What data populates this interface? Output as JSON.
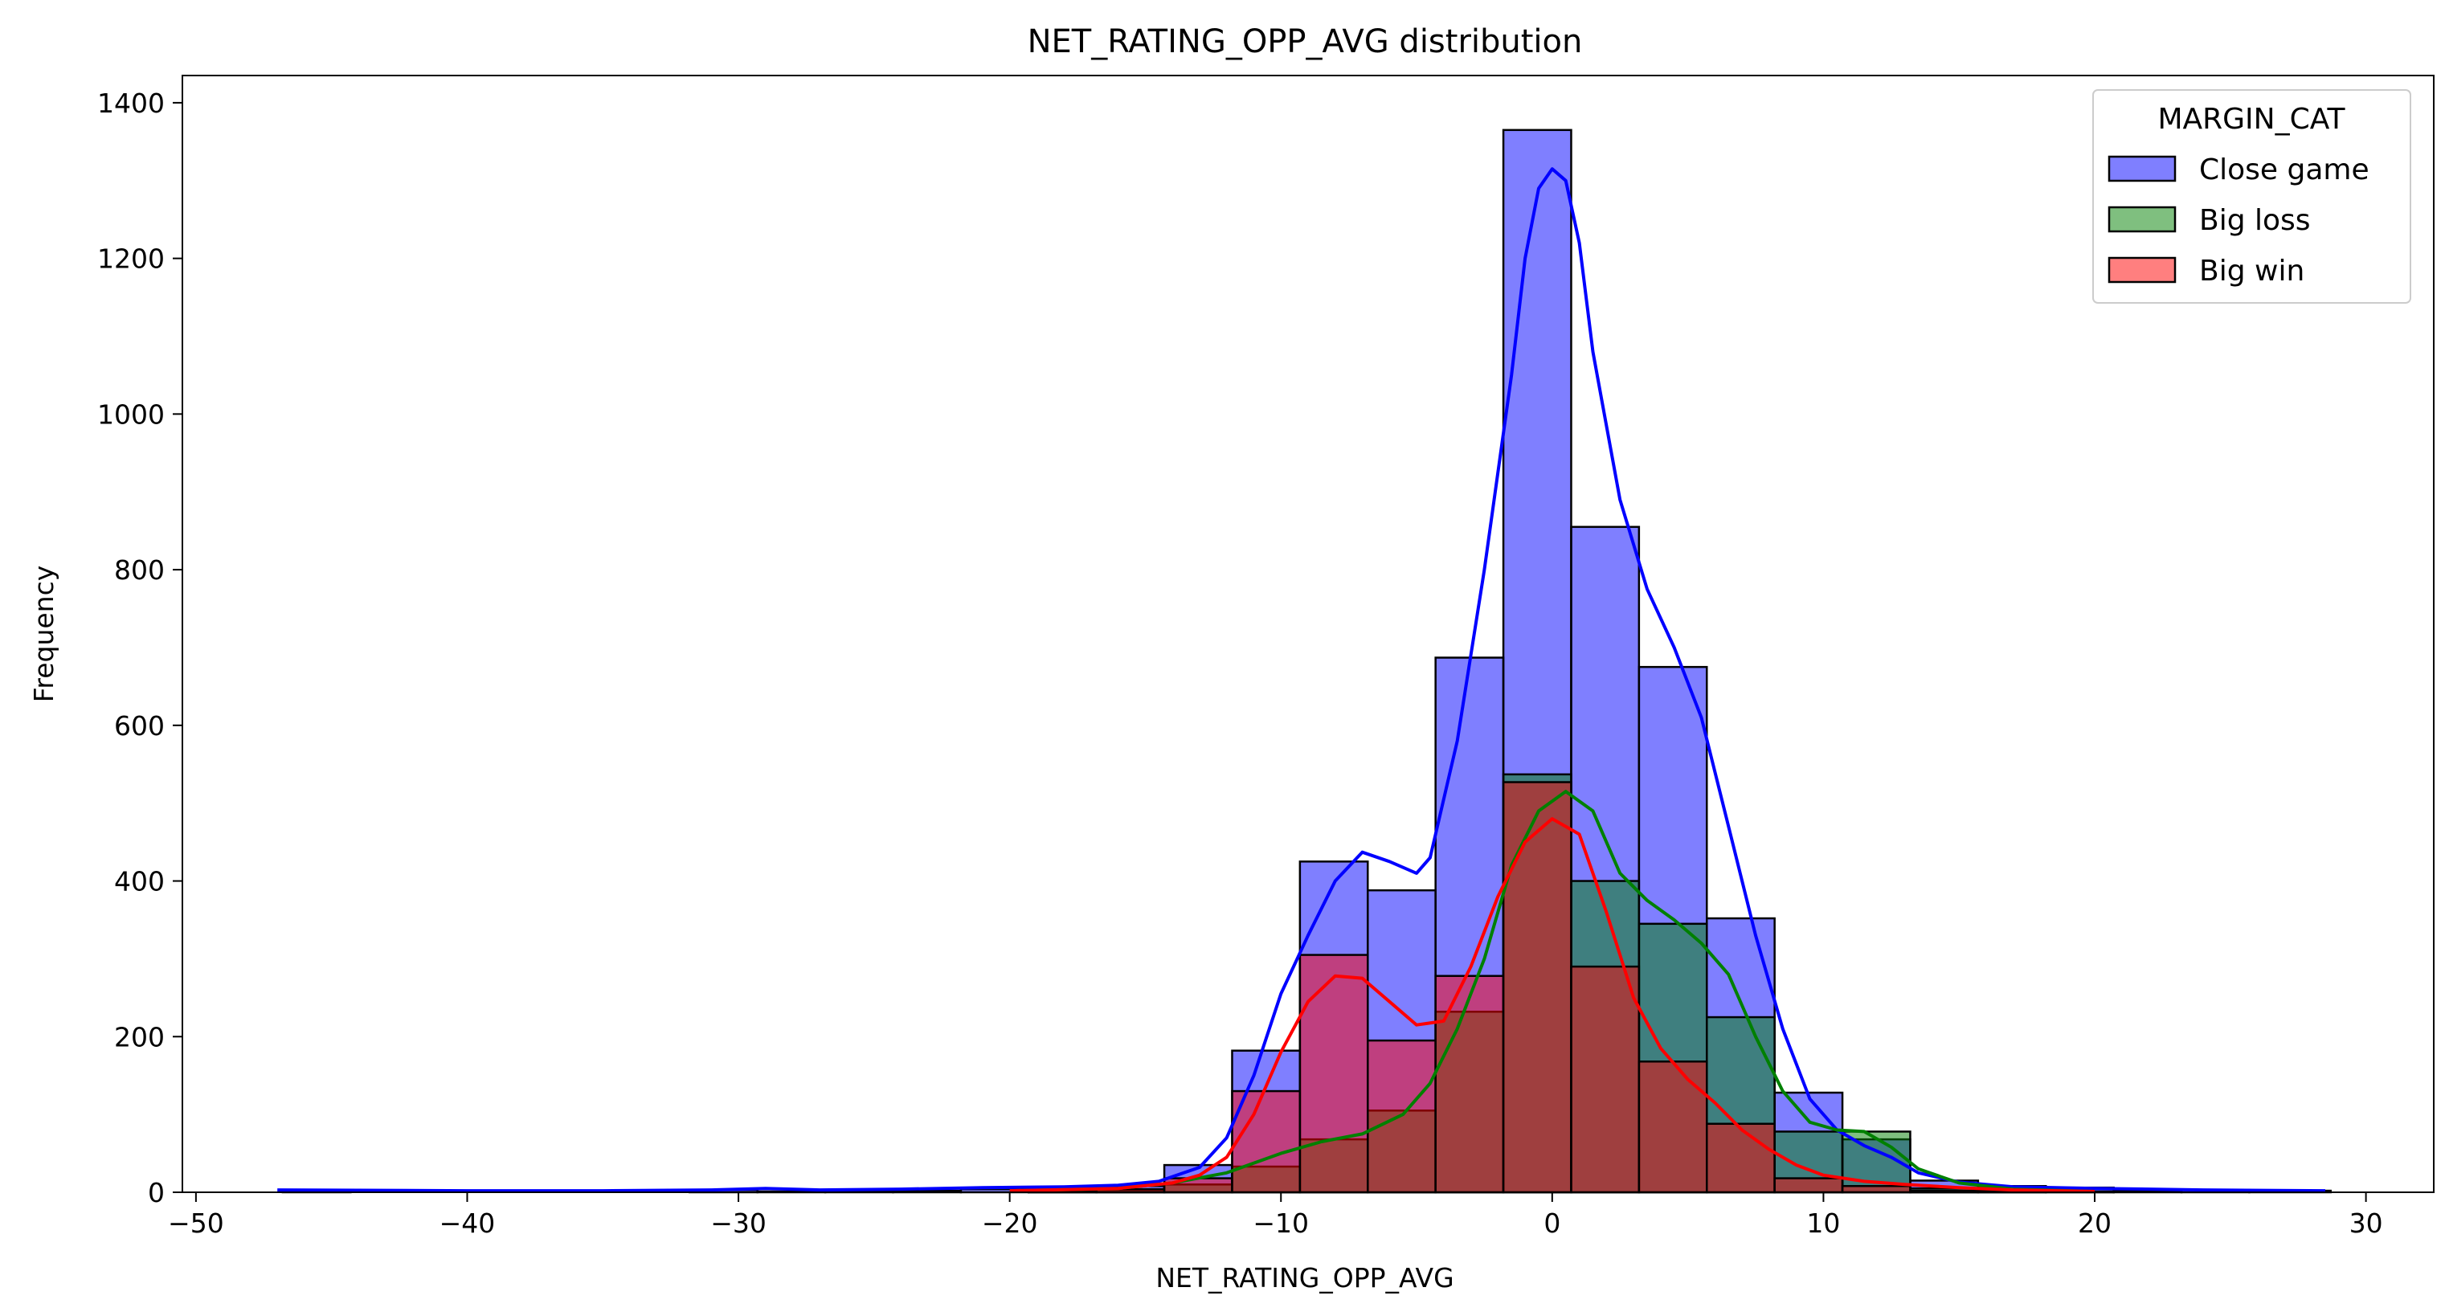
{
  "chart_data": {
    "type": "bar",
    "title": "NET_RATING_OPP_AVG distribution",
    "xlabel": "NET_RATING_OPP_AVG",
    "ylabel": "Frequency",
    "xlim": [
      -50.5,
      32.5
    ],
    "ylim": [
      0,
      1435
    ],
    "x_ticks": [
      -50,
      -40,
      -30,
      -20,
      -10,
      0,
      10,
      20,
      30
    ],
    "x_tick_labels": [
      "−50",
      "−40",
      "−30",
      "−20",
      "−10",
      "0",
      "10",
      "20",
      "30"
    ],
    "y_ticks": [
      0,
      200,
      400,
      600,
      800,
      1000,
      1200,
      1400
    ],
    "y_tick_labels": [
      "0",
      "200",
      "400",
      "600",
      "800",
      "1000",
      "1200",
      "1400"
    ],
    "grid": false,
    "legend": {
      "title": "MARGIN_CAT",
      "placement": "top-right"
    },
    "bin_edges": [
      -46.8,
      -44.3,
      -41.8,
      -39.3,
      -36.8,
      -34.3,
      -31.8,
      -29.3,
      -26.8,
      -24.3,
      -21.8,
      -19.3,
      -16.8,
      -14.3,
      -11.8,
      -9.3,
      -6.8,
      -4.3,
      -1.8,
      0.7,
      3.2,
      5.7,
      8.2,
      10.7,
      13.2,
      15.7,
      18.2,
      20.7,
      23.2,
      25.7,
      28.7
    ],
    "series": [
      {
        "name": "Close game",
        "color": "#0000ff",
        "values": [
          1,
          0,
          0,
          0,
          0,
          0,
          3,
          1,
          2,
          2,
          4,
          5,
          8,
          35,
          182,
          425,
          388,
          687,
          1365,
          855,
          675,
          352,
          128,
          68,
          15,
          8,
          6,
          2,
          3,
          2
        ],
        "kde": [
          [
            -47,
            3
          ],
          [
            -40,
            2
          ],
          [
            -35,
            2
          ],
          [
            -31,
            3
          ],
          [
            -29,
            5
          ],
          [
            -27,
            3
          ],
          [
            -24,
            4
          ],
          [
            -21,
            6
          ],
          [
            -18,
            7
          ],
          [
            -16,
            9
          ],
          [
            -14.5,
            14
          ],
          [
            -13,
            32
          ],
          [
            -12,
            70
          ],
          [
            -11,
            150
          ],
          [
            -10,
            255
          ],
          [
            -9,
            330
          ],
          [
            -8,
            400
          ],
          [
            -7,
            437
          ],
          [
            -6,
            425
          ],
          [
            -5,
            410
          ],
          [
            -4.5,
            430
          ],
          [
            -3.5,
            580
          ],
          [
            -2.5,
            800
          ],
          [
            -1.5,
            1050
          ],
          [
            -1,
            1200
          ],
          [
            -0.5,
            1290
          ],
          [
            0,
            1315
          ],
          [
            0.5,
            1300
          ],
          [
            1,
            1220
          ],
          [
            1.5,
            1080
          ],
          [
            2.5,
            890
          ],
          [
            3.5,
            775
          ],
          [
            4.5,
            700
          ],
          [
            5.5,
            610
          ],
          [
            6.5,
            470
          ],
          [
            7.5,
            330
          ],
          [
            8.5,
            210
          ],
          [
            9.5,
            120
          ],
          [
            10.5,
            80
          ],
          [
            11.5,
            60
          ],
          [
            12.5,
            45
          ],
          [
            13.5,
            25
          ],
          [
            15,
            13
          ],
          [
            17,
            7
          ],
          [
            20,
            5
          ],
          [
            24,
            3
          ],
          [
            28.5,
            2
          ]
        ]
      },
      {
        "name": "Big loss",
        "color": "#008000",
        "values": [
          0,
          0,
          0,
          0,
          0,
          0,
          0,
          0,
          0,
          0,
          0,
          1,
          3,
          10,
          33,
          68,
          105,
          232,
          537,
          400,
          345,
          225,
          78,
          78,
          5,
          3,
          1,
          0,
          0,
          0
        ],
        "kde": [
          [
            -20,
            2
          ],
          [
            -16,
            5
          ],
          [
            -14,
            12
          ],
          [
            -12,
            25
          ],
          [
            -10,
            50
          ],
          [
            -8.5,
            65
          ],
          [
            -7,
            75
          ],
          [
            -5.5,
            100
          ],
          [
            -4.5,
            140
          ],
          [
            -3.5,
            210
          ],
          [
            -2.5,
            300
          ],
          [
            -1.5,
            420
          ],
          [
            -0.5,
            490
          ],
          [
            0.5,
            515
          ],
          [
            1.5,
            490
          ],
          [
            2.5,
            410
          ],
          [
            3.5,
            375
          ],
          [
            4.5,
            350
          ],
          [
            5.5,
            320
          ],
          [
            6.5,
            280
          ],
          [
            7.5,
            200
          ],
          [
            8.5,
            130
          ],
          [
            9.5,
            90
          ],
          [
            10.5,
            80
          ],
          [
            11.5,
            78
          ],
          [
            12.5,
            58
          ],
          [
            13.5,
            30
          ],
          [
            15,
            12
          ],
          [
            17,
            4
          ],
          [
            20,
            1
          ]
        ]
      },
      {
        "name": "Big win",
        "color": "#ff0000",
        "values": [
          0,
          0,
          0,
          0,
          0,
          0,
          0,
          0,
          0,
          0,
          0,
          1,
          4,
          18,
          130,
          305,
          195,
          278,
          527,
          290,
          168,
          88,
          18,
          8,
          2,
          1,
          0,
          0,
          0,
          0
        ],
        "kde": [
          [
            -20,
            2
          ],
          [
            -16,
            5
          ],
          [
            -14,
            12
          ],
          [
            -13,
            22
          ],
          [
            -12,
            45
          ],
          [
            -11,
            100
          ],
          [
            -10,
            180
          ],
          [
            -9,
            245
          ],
          [
            -8,
            278
          ],
          [
            -7,
            275
          ],
          [
            -6,
            245
          ],
          [
            -5,
            215
          ],
          [
            -4,
            220
          ],
          [
            -3,
            290
          ],
          [
            -2,
            380
          ],
          [
            -1,
            450
          ],
          [
            0,
            480
          ],
          [
            1,
            460
          ],
          [
            2,
            360
          ],
          [
            3,
            250
          ],
          [
            4,
            185
          ],
          [
            5,
            145
          ],
          [
            6,
            115
          ],
          [
            7,
            80
          ],
          [
            8,
            55
          ],
          [
            9,
            35
          ],
          [
            10,
            22
          ],
          [
            11.5,
            14
          ],
          [
            13,
            10
          ],
          [
            15,
            6
          ],
          [
            17,
            3
          ],
          [
            20,
            1
          ]
        ]
      }
    ]
  }
}
